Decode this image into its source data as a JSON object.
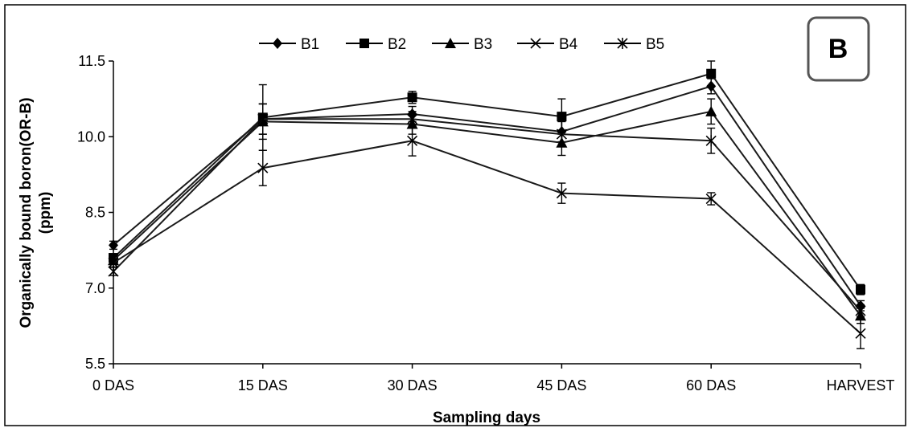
{
  "panel_label": "B",
  "chart_data": {
    "type": "line",
    "title": "",
    "xlabel": "Sampling days",
    "ylabel": "Organically bound boron(OR-B) (ppm)",
    "ylabel_lines": [
      "Organically bound boron(OR-B)",
      "(ppm)"
    ],
    "categories": [
      "0 DAS",
      "15 DAS",
      "30 DAS",
      "45 DAS",
      "60 DAS",
      "HARVEST"
    ],
    "ylim": [
      5.5,
      11.5
    ],
    "yticks": [
      "5.5",
      "7.0",
      "8.5",
      "10.0",
      "11.5"
    ],
    "grid": false,
    "legend_position": "top",
    "series": [
      {
        "name": "B1",
        "marker": "diamond",
        "values": [
          7.85,
          10.35,
          10.45,
          10.1,
          11.0,
          6.65
        ],
        "errors": [
          0.08,
          0.3,
          0.15,
          0.2,
          0.15,
          0.1
        ]
      },
      {
        "name": "B2",
        "marker": "square",
        "values": [
          7.6,
          10.38,
          10.78,
          10.4,
          11.25,
          6.97
        ],
        "errors": [
          0.08,
          0.65,
          0.12,
          0.35,
          0.25,
          0.1
        ]
      },
      {
        "name": "B3",
        "marker": "triangle",
        "values": [
          7.55,
          10.3,
          10.25,
          9.88,
          10.5,
          6.45
        ],
        "errors": [
          0.08,
          0.35,
          0.2,
          0.25,
          0.25,
          0.15
        ]
      },
      {
        "name": "B4",
        "marker": "x",
        "values": [
          7.5,
          9.38,
          9.92,
          8.88,
          8.77,
          6.1
        ],
        "errors": [
          0.08,
          0.35,
          0.3,
          0.2,
          0.12,
          0.3
        ]
      },
      {
        "name": "B5",
        "marker": "star",
        "values": [
          7.33,
          10.35,
          10.35,
          10.05,
          9.92,
          6.55
        ],
        "errors": [
          0.08,
          0.3,
          0.15,
          0.25,
          0.25,
          0.12
        ]
      }
    ]
  }
}
